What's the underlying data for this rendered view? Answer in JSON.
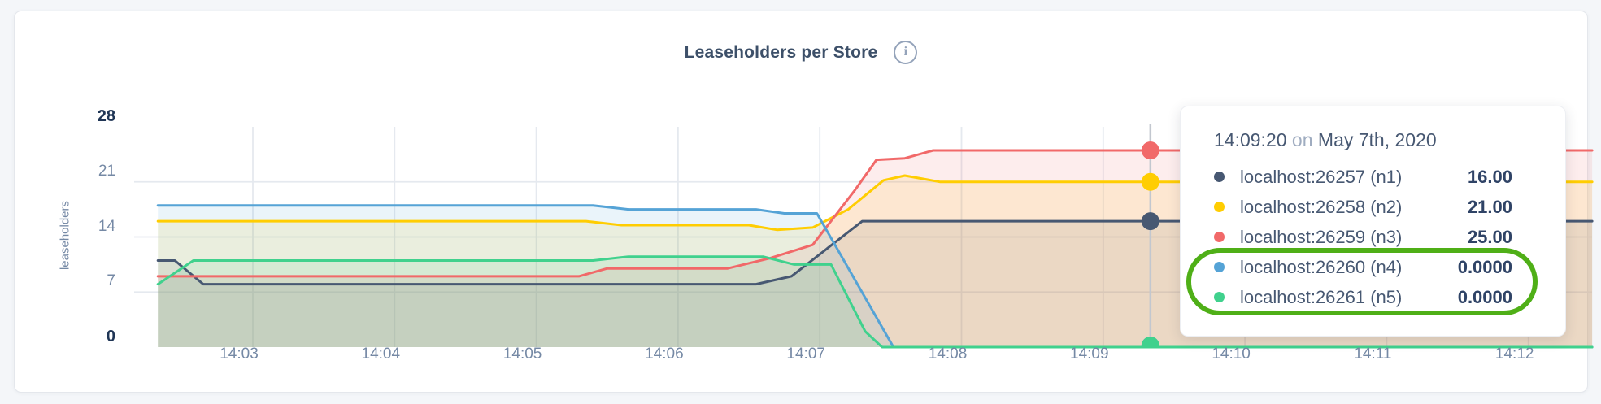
{
  "colors": {
    "page_bg": "#F4F6F9",
    "card_bg": "#FFFFFF",
    "grid": "#E5E9EF",
    "hover_line": "#C2C7CF",
    "title": "#3D5069",
    "tick_strong": "#1F3555",
    "tick_muted": "#7589A5",
    "annotation": "#4FAF17"
  },
  "header": {
    "title": "Leaseholders per Store"
  },
  "icons": {
    "info": "i"
  },
  "chart_data": {
    "type": "area",
    "title": "Leaseholders per Store",
    "xlabel": "",
    "ylabel": "leaseholders",
    "ylim": [
      0,
      28
    ],
    "y_ticks": [
      0,
      7,
      14,
      21,
      28
    ],
    "y_gridlines": [
      7,
      14,
      21
    ],
    "x_tick_labels": [
      "14:03",
      "14:04",
      "14:05",
      "14:06",
      "14:07",
      "14:08",
      "14:09",
      "14:10",
      "14:11",
      "14:12"
    ],
    "x_tick_minutes": [
      3,
      4,
      5,
      6,
      7,
      8,
      9,
      10,
      11,
      12
    ],
    "x_range_minutes": [
      2.33,
      12.45
    ],
    "grid": true,
    "legend_position": "tooltip",
    "fill_opacity": 0.12,
    "series": [
      {
        "name": "localhost:26257 (n1)",
        "color": "#475872",
        "hover_value": 16,
        "points": [
          [
            2.33,
            11
          ],
          [
            2.45,
            11
          ],
          [
            2.65,
            8
          ],
          [
            6.55,
            8
          ],
          [
            6.8,
            9
          ],
          [
            7.05,
            12.5
          ],
          [
            7.3,
            16
          ],
          [
            12.45,
            16
          ]
        ]
      },
      {
        "name": "localhost:26258 (n2)",
        "color": "#FFCD02",
        "hover_value": 21,
        "points": [
          [
            2.33,
            16
          ],
          [
            5.35,
            16
          ],
          [
            5.6,
            15.5
          ],
          [
            6.5,
            15.5
          ],
          [
            6.7,
            14.9
          ],
          [
            6.95,
            15.2
          ],
          [
            7.2,
            17.5
          ],
          [
            7.45,
            21.2
          ],
          [
            7.6,
            21.8
          ],
          [
            7.85,
            21
          ],
          [
            12.45,
            21
          ]
        ]
      },
      {
        "name": "localhost:26259 (n3)",
        "color": "#F16969",
        "hover_value": 25,
        "points": [
          [
            2.33,
            9
          ],
          [
            5.3,
            9
          ],
          [
            5.5,
            10
          ],
          [
            6.35,
            10
          ],
          [
            6.65,
            11.3
          ],
          [
            6.95,
            13
          ],
          [
            7.25,
            20
          ],
          [
            7.4,
            23.8
          ],
          [
            7.6,
            24
          ],
          [
            7.8,
            25
          ],
          [
            12.45,
            25
          ]
        ]
      },
      {
        "name": "localhost:26260 (n4)",
        "color": "#55A3D6",
        "hover_value": 0,
        "points": [
          [
            2.33,
            18
          ],
          [
            5.4,
            18
          ],
          [
            5.65,
            17.5
          ],
          [
            6.55,
            17.5
          ],
          [
            6.75,
            17
          ],
          [
            6.98,
            17
          ],
          [
            7.52,
            0
          ],
          [
            12.45,
            0
          ]
        ]
      },
      {
        "name": "localhost:26261 (n5)",
        "color": "#40D18D",
        "hover_value": 0,
        "points": [
          [
            2.33,
            8
          ],
          [
            2.58,
            11
          ],
          [
            5.4,
            11
          ],
          [
            5.65,
            11.5
          ],
          [
            6.6,
            11.5
          ],
          [
            6.82,
            10.5
          ],
          [
            7.08,
            10.5
          ],
          [
            7.32,
            2
          ],
          [
            7.44,
            0
          ],
          [
            12.45,
            0
          ]
        ]
      }
    ],
    "hover": {
      "minute": 9.333,
      "time": "14:09:20"
    }
  },
  "tooltip": {
    "time": "14:09:20",
    "connector": "on",
    "date": "May 7th, 2020",
    "rows": [
      {
        "name": "localhost:26257 (n1)",
        "value": "16.00",
        "color": "#475872",
        "highlighted": false
      },
      {
        "name": "localhost:26258 (n2)",
        "value": "21.00",
        "color": "#FFCD02",
        "highlighted": false
      },
      {
        "name": "localhost:26259 (n3)",
        "value": "25.00",
        "color": "#F16969",
        "highlighted": false
      },
      {
        "name": "localhost:26260 (n4)",
        "value": "0.0000",
        "color": "#55A3D6",
        "highlighted": true
      },
      {
        "name": "localhost:26261 (n5)",
        "value": "0.0000",
        "color": "#40D18D",
        "highlighted": true
      }
    ]
  }
}
